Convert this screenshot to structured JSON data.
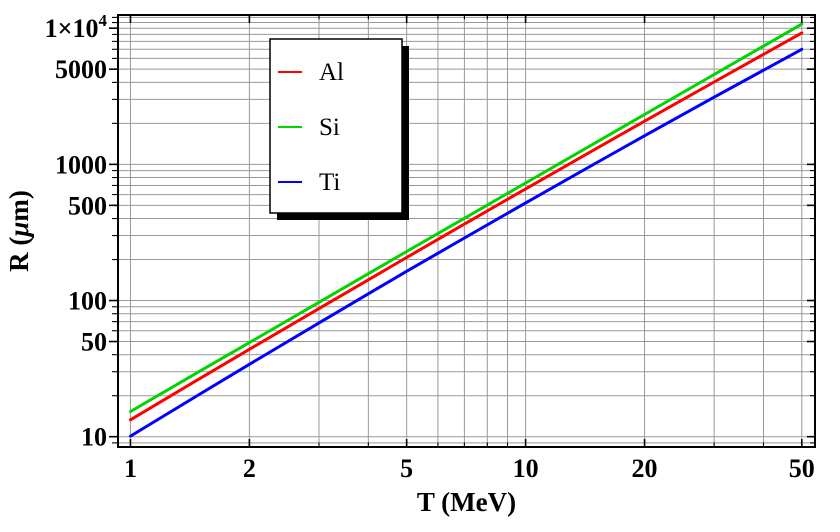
{
  "chart_data": {
    "type": "line",
    "title": "",
    "xlabel": "T (MeV)",
    "ylabel": "R (μm)",
    "x_scale": "log",
    "y_scale": "log",
    "xlim": [
      0.93,
      54
    ],
    "ylim": [
      8.4,
      12500
    ],
    "grid": true,
    "grid_color": "#999999",
    "frame_color": "#000000",
    "legend_position": "top-left-inside",
    "x_ticks": [
      {
        "value": 1,
        "label": "1"
      },
      {
        "value": 2,
        "label": "2"
      },
      {
        "value": 5,
        "label": "5"
      },
      {
        "value": 10,
        "label": "10"
      },
      {
        "value": 20,
        "label": "20"
      },
      {
        "value": 50,
        "label": "50"
      }
    ],
    "x_minor_ticks": [
      3,
      4,
      6,
      7,
      8,
      9,
      30,
      40
    ],
    "y_ticks": [
      {
        "value": 10,
        "label": "10"
      },
      {
        "value": 50,
        "label": "50"
      },
      {
        "value": 100,
        "label": "100"
      },
      {
        "value": 500,
        "label": "500"
      },
      {
        "value": 1000,
        "label": "1000"
      },
      {
        "value": 5000,
        "label": "5000"
      },
      {
        "value": 10000,
        "label": "1×10^4"
      }
    ],
    "y_minor_ticks": [
      9,
      20,
      30,
      40,
      60,
      70,
      80,
      90,
      200,
      300,
      400,
      600,
      700,
      800,
      900,
      2000,
      3000,
      4000,
      6000,
      7000,
      8000,
      9000,
      11000,
      12000
    ],
    "x": [
      1,
      1.5,
      2,
      3,
      5,
      7,
      10,
      15,
      20,
      30,
      50
    ],
    "series": [
      {
        "name": "Al",
        "color": "#ff0000",
        "values": [
          13.3,
          26.8,
          43.8,
          87.3,
          207,
          364,
          660,
          1292,
          2074,
          4028,
          9230
        ]
      },
      {
        "name": "Si",
        "color": "#00d500",
        "values": [
          15.3,
          30.3,
          49.1,
          97.1,
          229,
          402,
          730,
          1438,
          2325,
          4574,
          10720
        ]
      },
      {
        "name": "Ti",
        "color": "#0000ff",
        "values": [
          10.1,
          20.6,
          34.0,
          68.5,
          164,
          288,
          521,
          1015,
          1621,
          3114,
          7000
        ]
      }
    ],
    "legend": {
      "items": [
        {
          "label": "Al",
          "color": "#ff0000"
        },
        {
          "label": "Si",
          "color": "#00d500"
        },
        {
          "label": "Ti",
          "color": "#0000ff"
        }
      ]
    }
  }
}
